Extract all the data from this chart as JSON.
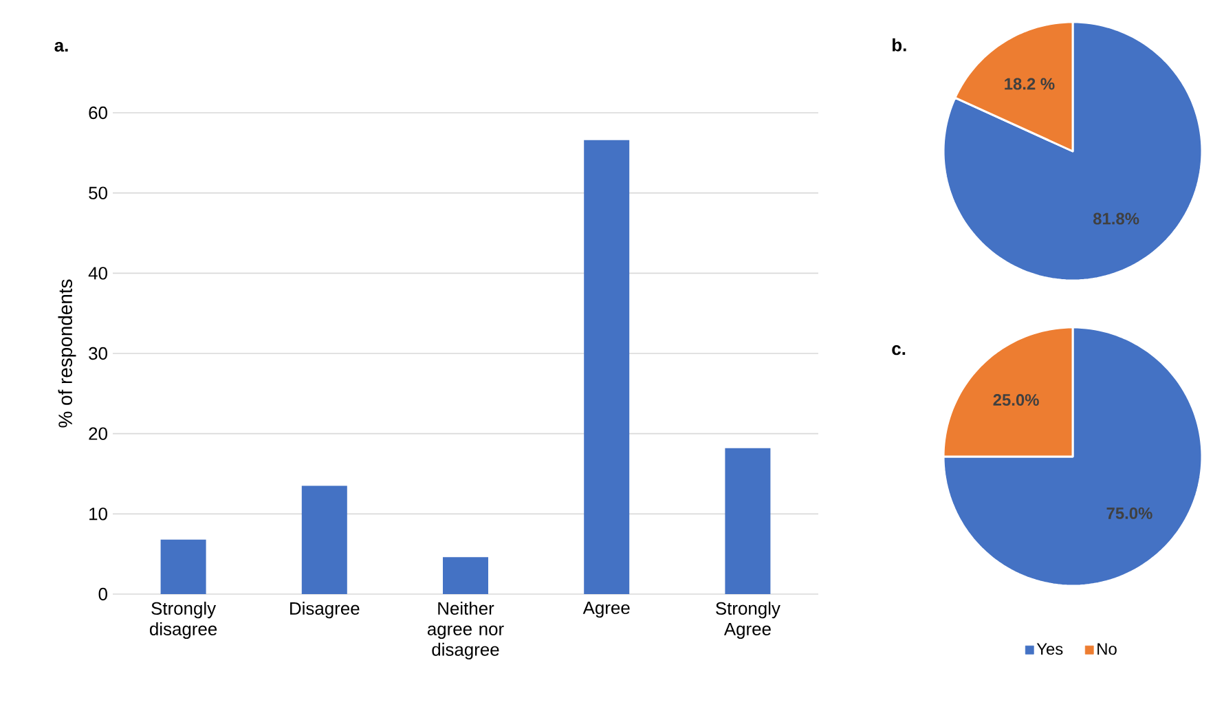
{
  "chart_data": [
    {
      "type": "bar",
      "title": "a.",
      "ylabel": "% of respondents",
      "categories": [
        "Strongly disagree",
        "Disagree",
        "Neither agree nor disagree",
        "Agree",
        "Strongly Agree"
      ],
      "values": [
        6.8,
        13.5,
        4.6,
        56.6,
        18.2
      ],
      "color": "#4472c4",
      "ylim": [
        0,
        60
      ],
      "yticks": [
        0,
        10,
        20,
        30,
        40,
        50,
        60
      ],
      "grid": "y"
    },
    {
      "type": "pie",
      "title": "b.",
      "categories": [
        null,
        null
      ],
      "values": [
        81.8,
        18.2
      ],
      "colors": [
        "#4472c4",
        "#ed7d31"
      ],
      "value_labels": [
        "81.8%",
        "18.2 %"
      ]
    },
    {
      "type": "pie",
      "title": "c.",
      "categories": [
        "Yes",
        "No"
      ],
      "values": [
        75.0,
        25.0
      ],
      "colors": [
        "#4472c4",
        "#ed7d31"
      ],
      "value_labels": [
        "75.0%",
        "25.0%"
      ],
      "legend": "bottom"
    }
  ]
}
